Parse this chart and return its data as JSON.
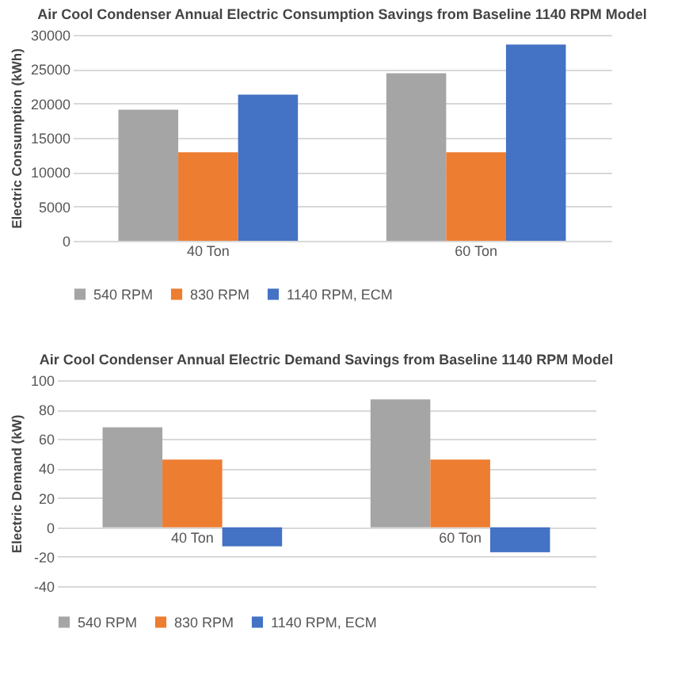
{
  "chart_data": [
    {
      "type": "bar",
      "title": "Air Cool Condenser Annual Electric Consumption Savings from Baseline 1140 RPM Model",
      "ylabel": "Electric Consumption (kWh)",
      "categories": [
        "40 Ton",
        "60 Ton"
      ],
      "series": [
        {
          "name": "540 RPM",
          "color": "#a5a5a5",
          "values": [
            19100,
            24400
          ]
        },
        {
          "name": "830 RPM",
          "color": "#ed7d31",
          "values": [
            12900,
            12900
          ]
        },
        {
          "name": "1140 RPM, ECM",
          "color": "#4472c4",
          "values": [
            21300,
            28600
          ]
        }
      ],
      "ylim": [
        0,
        30000
      ],
      "yticks": [
        0,
        5000,
        10000,
        15000,
        20000,
        25000,
        30000
      ],
      "grid": "y",
      "legend": "bottom"
    },
    {
      "type": "bar",
      "title": "Air Cool Condenser Annual Electric Demand Savings from Baseline 1140 RPM Model",
      "ylabel": "Electric Demand (kW)",
      "categories": [
        "40 Ton",
        "60 Ton"
      ],
      "series": [
        {
          "name": "540 RPM",
          "color": "#a5a5a5",
          "values": [
            68,
            87
          ]
        },
        {
          "name": "830 RPM",
          "color": "#ed7d31",
          "values": [
            46,
            46
          ]
        },
        {
          "name": "1140 RPM, ECM",
          "color": "#4472c4",
          "values": [
            -13,
            -17
          ]
        }
      ],
      "ylim": [
        -40,
        100
      ],
      "yticks": [
        -40,
        -20,
        0,
        20,
        40,
        60,
        80,
        100
      ],
      "grid": "y",
      "legend": "bottom"
    }
  ]
}
